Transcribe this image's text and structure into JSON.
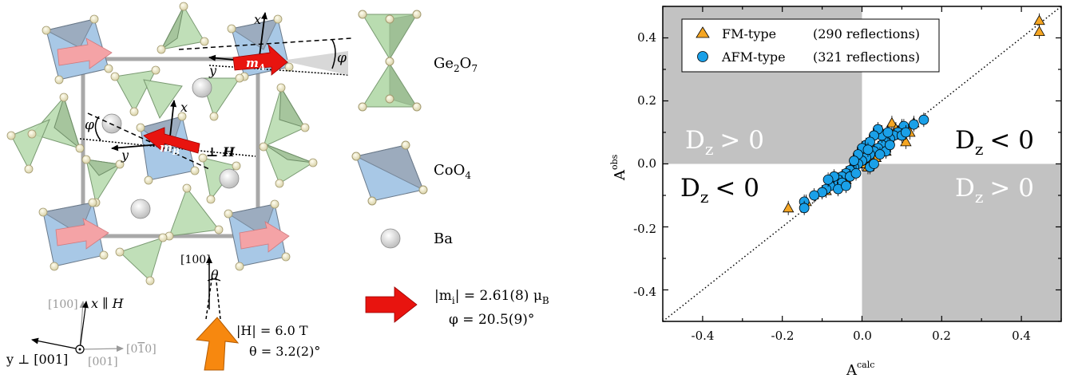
{
  "crystal": {
    "legend": {
      "ge_label": "Ge",
      "ge_sub1": "2",
      "ge_o": "O",
      "ge_sub2": "7",
      "co_label": "CoO",
      "co_sub": "4",
      "ba_label": "Ba"
    },
    "labels": {
      "x_a": "x",
      "y_a": "y",
      "m_a": "m",
      "m_a_sub": "A",
      "phi_a": "φ",
      "x_b": "x",
      "y_b": "y",
      "m_b": "m",
      "m_b_sub": "B",
      "phi_b": "φ",
      "perp_h": "⊥ H",
      "dir_100": "[100]",
      "theta": "θ"
    },
    "axes": {
      "gray_100": "[100]",
      "x_parallel": "x ∥ H",
      "y_perp": "y ⊥ [001]",
      "gray_001": "[001]",
      "gray_0bar10": "[0",
      "bar_one": "1",
      "bar_tail": "0]"
    },
    "field": {
      "h_value": "|H| = 6.0 T",
      "theta_value": "θ = 3.2(2)°"
    },
    "moment": {
      "m_value": "|m",
      "m_sub": "i",
      "m_rest": "| = 2.61(8) μ",
      "m_unit_sub": "B",
      "phi_value": "φ = 20.5(9)°"
    },
    "colors": {
      "red_arrow": "#e8140f",
      "pink_arrow": "#f4a3a6",
      "orange_arrow": "#f7880f",
      "tetra_green": "#b9dcb0",
      "co_blue": "#a8c8e6",
      "co_gray": "#9aa6b6"
    }
  },
  "chart": {
    "ylabel": "A",
    "ylabel_sup": "obs",
    "xlabel": "A",
    "xlabel_sup": "calc",
    "legend": [
      {
        "marker": "triangle",
        "name": "FM-type",
        "count": "(290 reflections)"
      },
      {
        "marker": "circle",
        "name": "AFM-type",
        "count": "(321 reflections)"
      }
    ],
    "regions": {
      "tl": "D",
      "tl_sub": "z",
      "tl_rel": "> 0",
      "tr": "D",
      "tr_sub": "z",
      "tr_rel": "< 0",
      "bl": "D",
      "bl_sub": "z",
      "bl_rel": "< 0",
      "br": "D",
      "br_sub": "z",
      "br_rel": "> 0"
    },
    "xticks": [
      "-0.4",
      "-0.2",
      "0.0",
      "0.2",
      "0.4"
    ],
    "yticks": [
      "-0.4",
      "-0.2",
      "0.0",
      "0.2",
      "0.4"
    ]
  },
  "chart_data": {
    "type": "scatter",
    "xlabel": "A^calc",
    "ylabel": "A^obs",
    "xlim": [
      -0.5,
      0.5
    ],
    "ylim": [
      -0.5,
      0.5
    ],
    "grid": false,
    "legend_position": "top-left",
    "reference_line": "y = x (dotted)",
    "shaded_quadrants": [
      "top-left",
      "bottom-right"
    ],
    "series": [
      {
        "name": "FM-type",
        "marker": "triangle",
        "color": "#f5a623",
        "points": [
          [
            0.445,
            0.455
          ],
          [
            0.445,
            0.42
          ],
          [
            -0.185,
            -0.14
          ],
          [
            -0.14,
            -0.12
          ],
          [
            -0.09,
            -0.085
          ],
          [
            -0.06,
            -0.07
          ],
          [
            -0.04,
            -0.05
          ],
          [
            -0.03,
            -0.03
          ],
          [
            -0.02,
            -0.02
          ],
          [
            0.0,
            0.0
          ],
          [
            0.01,
            0.0
          ],
          [
            0.02,
            0.01
          ],
          [
            0.03,
            0.03
          ],
          [
            0.04,
            0.05
          ],
          [
            0.05,
            0.06
          ],
          [
            0.06,
            0.08
          ],
          [
            0.07,
            0.09
          ],
          [
            0.075,
            0.13
          ],
          [
            0.085,
            0.11
          ],
          [
            0.09,
            0.1
          ],
          [
            0.1,
            0.12
          ],
          [
            0.11,
            0.07
          ],
          [
            0.12,
            0.1
          ],
          [
            0.13,
            0.13
          ],
          [
            0.05,
            0.1
          ],
          [
            -0.01,
            0.02
          ],
          [
            0.015,
            -0.01
          ],
          [
            0.035,
            0.02
          ],
          [
            0.06,
            0.04
          ],
          [
            -0.05,
            -0.06
          ]
        ]
      },
      {
        "name": "AFM-type",
        "marker": "circle",
        "color": "#1aa0e8",
        "points": [
          [
            0.155,
            0.14
          ],
          [
            0.13,
            0.125
          ],
          [
            0.105,
            0.12
          ],
          [
            0.09,
            0.1
          ],
          [
            0.08,
            0.09
          ],
          [
            0.07,
            0.08
          ],
          [
            0.06,
            0.07
          ],
          [
            0.05,
            0.06
          ],
          [
            0.04,
            0.05
          ],
          [
            0.03,
            0.04
          ],
          [
            0.02,
            0.03
          ],
          [
            0.01,
            0.02
          ],
          [
            0.0,
            0.01
          ],
          [
            -0.01,
            0.0
          ],
          [
            -0.02,
            -0.01
          ],
          [
            -0.03,
            -0.02
          ],
          [
            -0.04,
            -0.03
          ],
          [
            -0.05,
            -0.04
          ],
          [
            -0.06,
            -0.05
          ],
          [
            -0.07,
            -0.06
          ],
          [
            -0.08,
            -0.07
          ],
          [
            -0.09,
            -0.08
          ],
          [
            -0.1,
            -0.09
          ],
          [
            -0.12,
            -0.1
          ],
          [
            -0.145,
            -0.12
          ],
          [
            -0.145,
            -0.14
          ],
          [
            0.05,
            0.09
          ],
          [
            0.04,
            0.11
          ],
          [
            0.03,
            0.09
          ],
          [
            0.01,
            0.06
          ],
          [
            0.0,
            0.05
          ],
          [
            -0.01,
            0.03
          ],
          [
            -0.03,
            -0.04
          ],
          [
            -0.05,
            -0.06
          ],
          [
            -0.06,
            -0.08
          ],
          [
            -0.04,
            -0.07
          ],
          [
            0.02,
            -0.01
          ],
          [
            0.03,
            0.0
          ],
          [
            0.06,
            0.04
          ],
          [
            0.07,
            0.06
          ],
          [
            0.1,
            0.09
          ],
          [
            0.02,
            0.07
          ],
          [
            -0.02,
            0.01
          ],
          [
            -0.07,
            -0.04
          ],
          [
            -0.085,
            -0.05
          ],
          [
            0.065,
            0.1
          ],
          [
            0.11,
            0.1
          ],
          [
            0.045,
            0.03
          ],
          [
            -0.015,
            -0.03
          ],
          [
            0.015,
            0.045
          ]
        ]
      }
    ]
  }
}
